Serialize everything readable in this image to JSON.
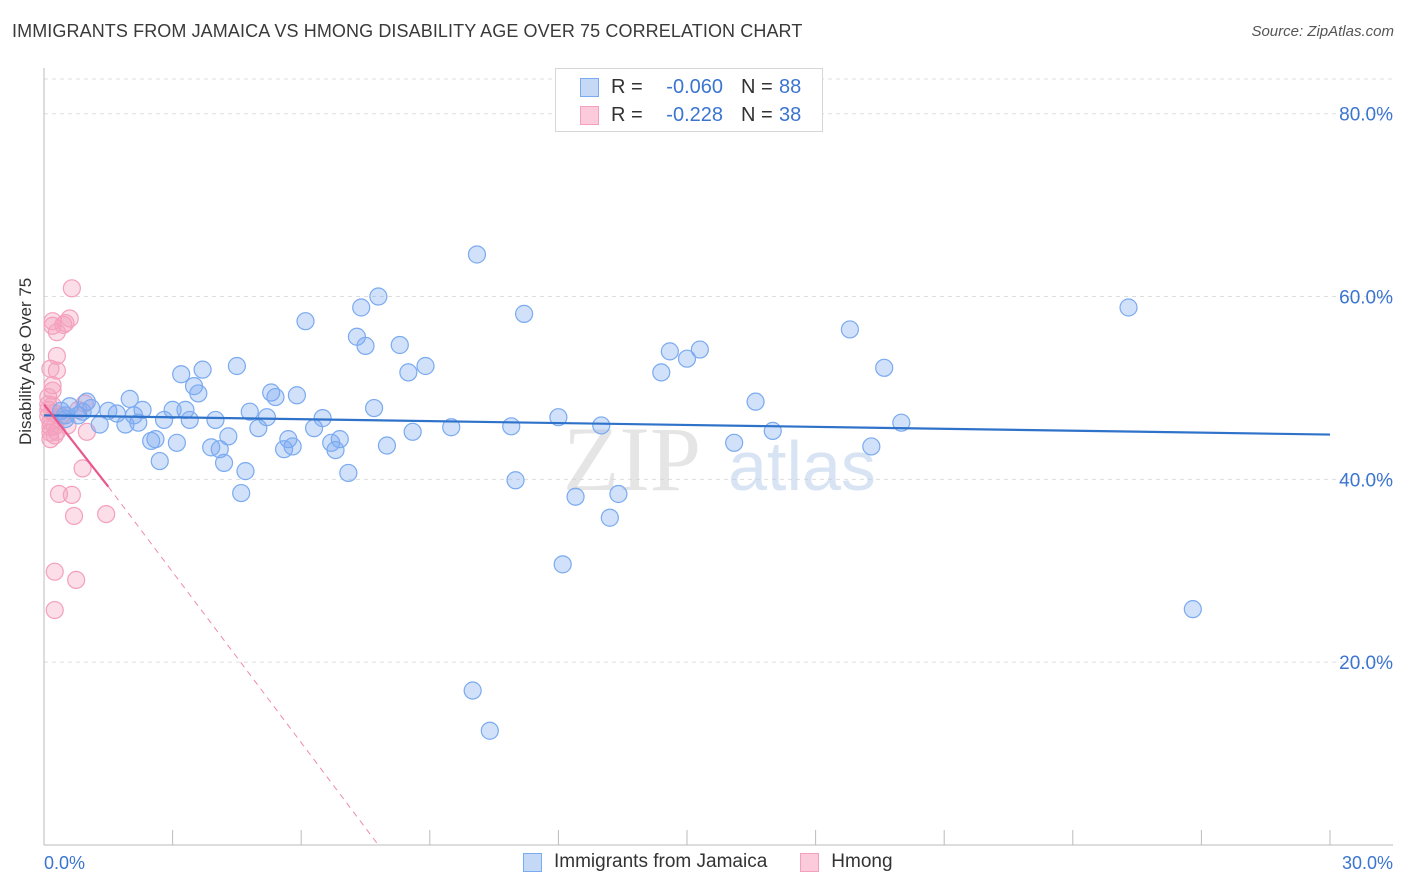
{
  "title": "IMMIGRANTS FROM JAMAICA VS HMONG DISABILITY AGE OVER 75 CORRELATION CHART",
  "source": "Source: ZipAtlas.com",
  "watermark": {
    "zip": "ZIP",
    "atlas": "atlas"
  },
  "chart_data": {
    "type": "scatter",
    "ylabel": "Disability Age Over 75",
    "xlim": [
      0,
      30
    ],
    "ylim": [
      0,
      85
    ],
    "y_ticks": [
      20,
      40,
      60,
      80
    ],
    "y_tick_labels": [
      "20.0%",
      "40.0%",
      "60.0%",
      "80.0%"
    ],
    "x_tick_labels": {
      "min": "0.0%",
      "max": "30.0%"
    },
    "series": [
      {
        "name": "Immigrants from Jamaica",
        "color": "#7aaaf0",
        "line_color": "#2f72c9",
        "R": "-0.060",
        "N": "88",
        "trend": {
          "x": [
            0.0,
            30.0
          ],
          "y": [
            47.0,
            44.9
          ]
        },
        "points": [
          [
            0.4,
            47.5
          ],
          [
            0.5,
            47.0
          ],
          [
            0.6,
            48.0
          ],
          [
            0.8,
            47.0
          ],
          [
            1.0,
            48.5
          ],
          [
            1.1,
            47.8
          ],
          [
            1.3,
            46.0
          ],
          [
            1.5,
            47.5
          ],
          [
            1.7,
            47.2
          ],
          [
            1.9,
            46.0
          ],
          [
            2.0,
            48.8
          ],
          [
            2.1,
            47.0
          ],
          [
            2.2,
            46.2
          ],
          [
            2.3,
            47.6
          ],
          [
            2.5,
            44.2
          ],
          [
            2.6,
            44.4
          ],
          [
            2.7,
            42.0
          ],
          [
            2.8,
            46.5
          ],
          [
            3.0,
            47.6
          ],
          [
            3.1,
            44.0
          ],
          [
            3.2,
            51.5
          ],
          [
            3.3,
            47.6
          ],
          [
            3.4,
            46.5
          ],
          [
            3.5,
            50.2
          ],
          [
            3.6,
            49.4
          ],
          [
            3.7,
            52.0
          ],
          [
            3.9,
            43.5
          ],
          [
            4.0,
            46.5
          ],
          [
            4.1,
            43.3
          ],
          [
            4.2,
            41.8
          ],
          [
            4.3,
            44.7
          ],
          [
            4.5,
            52.4
          ],
          [
            4.6,
            38.5
          ],
          [
            4.7,
            40.9
          ],
          [
            4.8,
            47.4
          ],
          [
            5.0,
            45.6
          ],
          [
            5.2,
            46.8
          ],
          [
            5.3,
            49.5
          ],
          [
            5.4,
            49.0
          ],
          [
            5.6,
            43.3
          ],
          [
            5.7,
            44.4
          ],
          [
            5.8,
            43.6
          ],
          [
            5.9,
            49.2
          ],
          [
            6.1,
            57.3
          ],
          [
            6.3,
            45.6
          ],
          [
            6.5,
            46.7
          ],
          [
            6.7,
            44.0
          ],
          [
            6.8,
            43.2
          ],
          [
            6.9,
            44.4
          ],
          [
            7.1,
            40.7
          ],
          [
            7.3,
            55.6
          ],
          [
            7.4,
            58.8
          ],
          [
            7.5,
            54.6
          ],
          [
            7.7,
            47.8
          ],
          [
            7.8,
            60.0
          ],
          [
            8.0,
            43.7
          ],
          [
            8.3,
            54.7
          ],
          [
            8.5,
            51.7
          ],
          [
            8.6,
            45.2
          ],
          [
            8.9,
            52.4
          ],
          [
            9.5,
            45.7
          ],
          [
            10.0,
            16.9
          ],
          [
            10.1,
            64.6
          ],
          [
            10.4,
            12.5
          ],
          [
            10.9,
            45.8
          ],
          [
            11.0,
            39.9
          ],
          [
            11.2,
            58.1
          ],
          [
            12.0,
            46.8
          ],
          [
            12.1,
            30.7
          ],
          [
            12.4,
            38.1
          ],
          [
            13.0,
            45.9
          ],
          [
            13.2,
            35.8
          ],
          [
            13.4,
            38.4
          ],
          [
            14.4,
            51.7
          ],
          [
            14.6,
            54.0
          ],
          [
            15.0,
            53.2
          ],
          [
            15.3,
            54.2
          ],
          [
            16.1,
            44.0
          ],
          [
            16.6,
            48.5
          ],
          [
            17.0,
            45.3
          ],
          [
            18.8,
            56.4
          ],
          [
            19.3,
            43.6
          ],
          [
            19.6,
            52.2
          ],
          [
            20.0,
            46.2
          ],
          [
            25.3,
            58.8
          ],
          [
            26.8,
            25.8
          ],
          [
            0.5,
            46.6
          ],
          [
            0.9,
            47.4
          ]
        ]
      },
      {
        "name": "Hmong",
        "color": "#f4a0bd",
        "line_color": "#e8588f",
        "R": "-0.228",
        "N": "38",
        "trend": {
          "x": [
            0.0,
            1.5
          ],
          "y": [
            48.2,
            39.2
          ]
        },
        "trend_extension": {
          "x": [
            1.5,
            7.8
          ],
          "y": [
            39.2,
            0.0
          ]
        },
        "points": [
          [
            0.1,
            49.0
          ],
          [
            0.1,
            48.2
          ],
          [
            0.1,
            47.6
          ],
          [
            0.1,
            46.9
          ],
          [
            0.15,
            46.3
          ],
          [
            0.15,
            45.7
          ],
          [
            0.15,
            45.1
          ],
          [
            0.15,
            44.4
          ],
          [
            0.15,
            52.1
          ],
          [
            0.2,
            57.3
          ],
          [
            0.2,
            56.8
          ],
          [
            0.2,
            50.3
          ],
          [
            0.2,
            49.7
          ],
          [
            0.2,
            48.1
          ],
          [
            0.25,
            47.2
          ],
          [
            0.25,
            45.8
          ],
          [
            0.25,
            44.8
          ],
          [
            0.25,
            29.9
          ],
          [
            0.25,
            25.7
          ],
          [
            0.3,
            56.1
          ],
          [
            0.3,
            53.5
          ],
          [
            0.3,
            51.9
          ],
          [
            0.3,
            45.2
          ],
          [
            0.35,
            38.4
          ],
          [
            0.4,
            46.9
          ],
          [
            0.45,
            56.9
          ],
          [
            0.5,
            57.1
          ],
          [
            0.55,
            45.9
          ],
          [
            0.6,
            57.6
          ],
          [
            0.65,
            38.3
          ],
          [
            0.7,
            36.0
          ],
          [
            0.75,
            29.0
          ],
          [
            0.65,
            60.9
          ],
          [
            0.8,
            47.6
          ],
          [
            0.9,
            41.2
          ],
          [
            0.95,
            48.3
          ],
          [
            1.0,
            45.2
          ],
          [
            1.45,
            36.2
          ]
        ]
      }
    ]
  }
}
